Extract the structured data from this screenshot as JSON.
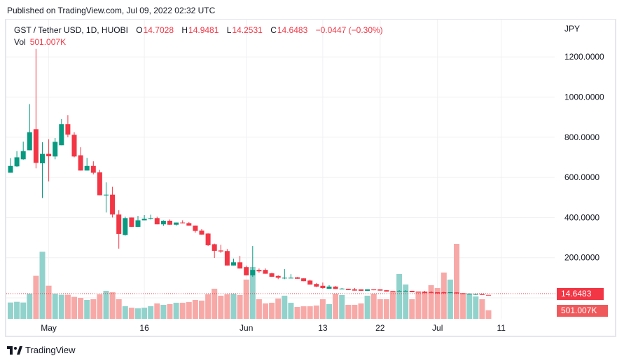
{
  "published": "Published on TradingView.com, Jul 09, 2022 02:32 UTC",
  "legend": {
    "symbol": "GST / Tether USD, 1D, HUOBI",
    "o_label": "O",
    "o": "14.7028",
    "h_label": "H",
    "h": "14.9481",
    "l_label": "L",
    "l": "14.2531",
    "c_label": "C",
    "c": "14.6483",
    "change": "−0.0447 (−0.30%)",
    "vol_label": "Vol",
    "vol": "501.007K"
  },
  "currency": "JPY",
  "last_price_tag": "14.6483",
  "last_volume_tag": "501.007K",
  "footer_logo": "TradingView",
  "colors": {
    "up": "#089981",
    "down": "#f23645",
    "up_vol": "#92d2cc",
    "down_vol": "#f7a9a7",
    "grid": "#f0f0f3"
  },
  "chart_data": {
    "type": "candlestick",
    "title": "GST / Tether USD, 1D, HUOBI",
    "ylabel": "JPY",
    "ylim": [
      0,
      1250
    ],
    "yticks": [
      "200.0000",
      "400.0000",
      "600.0000",
      "800.0000",
      "1000.0000",
      "1200.0000"
    ],
    "ytick_values": [
      200,
      400,
      600,
      800,
      1000,
      1200
    ],
    "xticks": [
      {
        "label": "May",
        "index": 6
      },
      {
        "label": "16",
        "index": 21
      },
      {
        "label": "Jun",
        "index": 37
      },
      {
        "label": "13",
        "index": 49
      },
      {
        "label": "22",
        "index": 58
      },
      {
        "label": "Jul",
        "index": 67
      },
      {
        "label": "11",
        "index": 77
      }
    ],
    "start_date": "2022-04-25",
    "ohlc": [
      [
        623,
        696,
        623,
        657
      ],
      [
        655,
        731,
        652,
        700
      ],
      [
        690,
        778,
        688,
        731
      ],
      [
        735,
        965,
        735,
        825
      ],
      [
        840,
        1240,
        645,
        672
      ],
      [
        670,
        775,
        497,
        717
      ],
      [
        717,
        790,
        580,
        705
      ],
      [
        704,
        796,
        690,
        777
      ],
      [
        760,
        890,
        760,
        865
      ],
      [
        865,
        910,
        800,
        813
      ],
      [
        812,
        825,
        700,
        704
      ],
      [
        710,
        750,
        634,
        634
      ],
      [
        634,
        697,
        634,
        657
      ],
      [
        657,
        680,
        615,
        623
      ],
      [
        625,
        637,
        511,
        511
      ],
      [
        510,
        575,
        425,
        514
      ],
      [
        514,
        553,
        400,
        415
      ],
      [
        415,
        436,
        245,
        318
      ],
      [
        313,
        404,
        310,
        397
      ],
      [
        400,
        400,
        353,
        353
      ],
      [
        353,
        408,
        353,
        386
      ],
      [
        386,
        412,
        386,
        394
      ],
      [
        394,
        414,
        390,
        397
      ],
      [
        397,
        404,
        366,
        366
      ],
      [
        366,
        386,
        359,
        384
      ],
      [
        384,
        390,
        364,
        364
      ],
      [
        364,
        375,
        360,
        375
      ],
      [
        375,
        386,
        371,
        372
      ],
      [
        372,
        377,
        360,
        360
      ],
      [
        360,
        360,
        325,
        333
      ],
      [
        335,
        342,
        315,
        315
      ],
      [
        320,
        322,
        258,
        262
      ],
      [
        267,
        270,
        199,
        234
      ],
      [
        236,
        264,
        224,
        231
      ],
      [
        233,
        243,
        161,
        161
      ],
      [
        161,
        195,
        161,
        177
      ],
      [
        177,
        209,
        146,
        146
      ],
      [
        153,
        160,
        112,
        112
      ],
      [
        112,
        258,
        104,
        139
      ],
      [
        139,
        146,
        125,
        132
      ],
      [
        139,
        146,
        120,
        120
      ],
      [
        122,
        125,
        105,
        105
      ],
      [
        109,
        112,
        93,
        100
      ],
      [
        99,
        143,
        93,
        100
      ],
      [
        100,
        118,
        99,
        100
      ],
      [
        102,
        104,
        95,
        95
      ],
      [
        97,
        97,
        83,
        83
      ],
      [
        86,
        90,
        66,
        66
      ],
      [
        69,
        74,
        53,
        56
      ],
      [
        60,
        76,
        45,
        49
      ],
      [
        45,
        63,
        45,
        56
      ],
      [
        56,
        59,
        44,
        44
      ],
      [
        44,
        49,
        44,
        46
      ],
      [
        45,
        45,
        39,
        39
      ],
      [
        42,
        49,
        36,
        36
      ],
      [
        42,
        42,
        35,
        35
      ],
      [
        35,
        42,
        35,
        42
      ],
      [
        42,
        42,
        38,
        38
      ],
      [
        42,
        42,
        36,
        36
      ],
      [
        38,
        38,
        31,
        31
      ],
      [
        35,
        35,
        31,
        31
      ],
      [
        31,
        38,
        31,
        35
      ],
      [
        31,
        38,
        31,
        35
      ],
      [
        35,
        35,
        28,
        28
      ],
      [
        30,
        30,
        28,
        28
      ],
      [
        30,
        35,
        24,
        24
      ],
      [
        29,
        34,
        24,
        24
      ],
      [
        28,
        28,
        22,
        22
      ],
      [
        28,
        30,
        23,
        23
      ],
      [
        24,
        28,
        24,
        28
      ],
      [
        27,
        28,
        22,
        22
      ],
      [
        22,
        24,
        18,
        19
      ],
      [
        18,
        22,
        18,
        20
      ],
      [
        18,
        20,
        15,
        19
      ],
      [
        19,
        19,
        14.7,
        14.7
      ],
      [
        14.7028,
        14.9481,
        14.2531,
        14.6483
      ]
    ],
    "volume_k": [
      950,
      990,
      950,
      1465,
      2500,
      3900,
      1925,
      1465,
      1400,
      1400,
      1275,
      1220,
      1100,
      1140,
      1425,
      1630,
      1545,
      1140,
      735,
      650,
      610,
      650,
      735,
      895,
      815,
      855,
      935,
      935,
      975,
      1100,
      1060,
      1425,
      1750,
      1345,
      1425,
      1465,
      1385,
      2280,
      3010,
      1140,
      895,
      935,
      1180,
      1345,
      935,
      690,
      730,
      730,
      775,
      1140,
      855,
      1465,
      1385,
      815,
      815,
      895,
      1345,
      1465,
      1140,
      1140,
      1590,
      2605,
      1995,
      1140,
      1590,
      1590,
      1955,
      1790,
      2690,
      2280,
      4355,
      1505,
      1465,
      1300,
      1140,
      501.007
    ]
  }
}
